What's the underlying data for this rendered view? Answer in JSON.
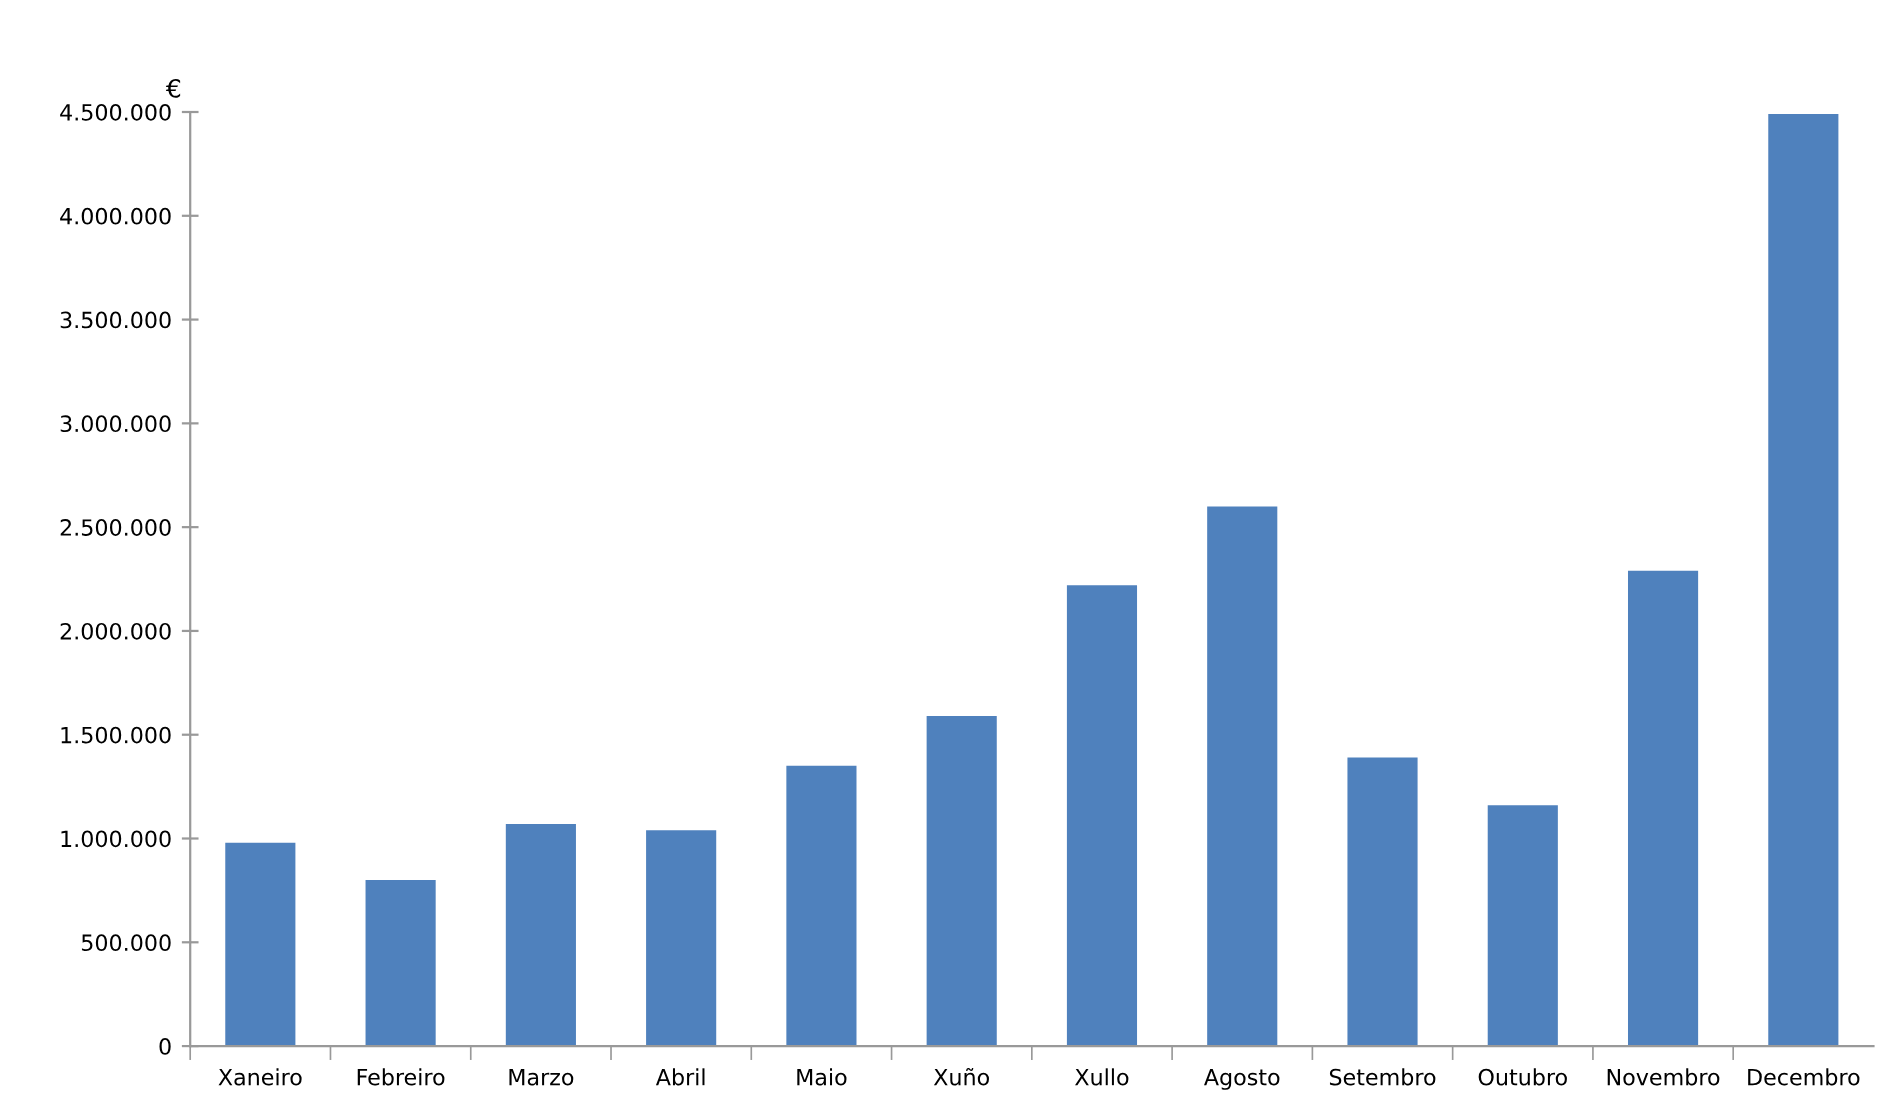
{
  "chart_data": {
    "type": "bar",
    "ylabel": "€",
    "categories": [
      "Xaneiro",
      "Febreiro",
      "Marzo",
      "Abril",
      "Maio",
      "Xuño",
      "Xullo",
      "Agosto",
      "Setembro",
      "Outubro",
      "Novembro",
      "Decembro"
    ],
    "series": [
      {
        "color": "#4f81bd",
        "values": [
          980000,
          800000,
          1070000,
          1040000,
          1350000,
          1590000,
          2220000,
          2600000,
          1390000,
          1160000,
          2290000,
          4490000
        ]
      }
    ],
    "ylim": [
      0,
      4500000
    ],
    "yticks": [
      {
        "value": 0,
        "label": "0"
      },
      {
        "value": 500000,
        "label": "500.000"
      },
      {
        "value": 1000000,
        "label": "1.000.000"
      },
      {
        "value": 1500000,
        "label": "1.500.000"
      },
      {
        "value": 2000000,
        "label": "2.000.000"
      },
      {
        "value": 2500000,
        "label": "2.500.000"
      },
      {
        "value": 3000000,
        "label": "3.000.000"
      },
      {
        "value": 3500000,
        "label": "3.500.000"
      },
      {
        "value": 4000000,
        "label": "4.000.000"
      },
      {
        "value": 4500000,
        "label": "4.500.000"
      }
    ],
    "grid": false,
    "legend": false
  }
}
